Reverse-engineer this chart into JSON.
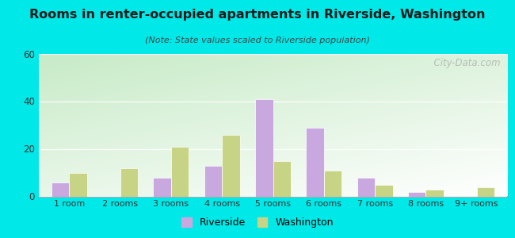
{
  "title": "Rooms in renter-occupied apartments in Riverside, Washington",
  "subtitle": "(Note: State values scaled to Riverside population)",
  "categories": [
    "1 room",
    "2 rooms",
    "3 rooms",
    "4 rooms",
    "5 rooms",
    "6 rooms",
    "7 rooms",
    "8 rooms",
    "9+ rooms"
  ],
  "riverside": [
    6,
    0,
    8,
    13,
    41,
    29,
    8,
    2,
    0
  ],
  "washington": [
    10,
    12,
    21,
    26,
    15,
    11,
    5,
    3,
    4
  ],
  "riverside_color": "#c9a8e0",
  "washington_color": "#c8d485",
  "ylim": [
    0,
    60
  ],
  "yticks": [
    0,
    20,
    40,
    60
  ],
  "bg_outer": "#00e8e8",
  "watermark": "  City-Data.com",
  "bar_width": 0.35,
  "legend_riverside": "Riverside",
  "legend_washington": "Washington",
  "title_color": "#1a1a1a",
  "subtitle_color": "#444444",
  "tick_color": "#333333"
}
